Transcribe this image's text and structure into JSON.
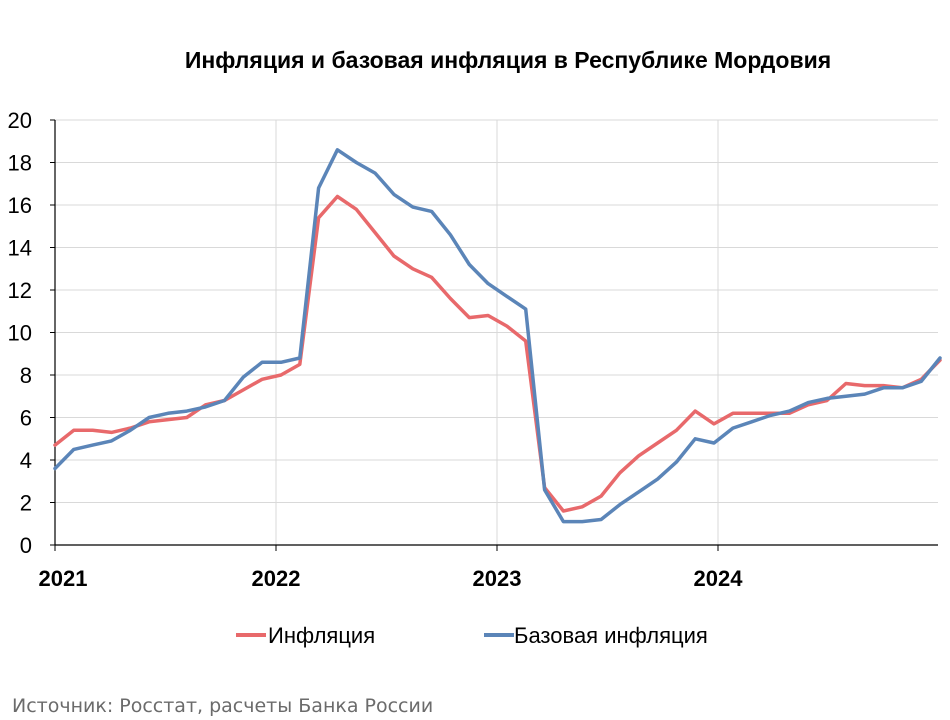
{
  "chart_data": {
    "type": "line",
    "title": "Инфляция и базовая инфляция в Республике Мордовия",
    "source": "Источник: Росстат, расчеты Банка России",
    "ylim": [
      0,
      20
    ],
    "yticks": [
      0,
      2,
      4,
      6,
      8,
      10,
      12,
      14,
      16,
      18,
      20
    ],
    "xticks": [
      "2021",
      "2022",
      "2023",
      "2024"
    ],
    "grid": true,
    "legend_position": "bottom",
    "x": [
      "2021-01",
      "2021-02",
      "2021-03",
      "2021-04",
      "2021-05",
      "2021-06",
      "2021-07",
      "2021-08",
      "2021-09",
      "2021-10",
      "2021-11",
      "2021-12",
      "2022-01",
      "2022-02",
      "2022-03",
      "2022-04",
      "2022-05",
      "2022-06",
      "2022-07",
      "2022-08",
      "2022-09",
      "2022-10",
      "2022-11",
      "2022-12",
      "2023-01",
      "2023-02",
      "2023-03",
      "2023-04",
      "2023-05",
      "2023-06",
      "2023-07",
      "2023-08",
      "2023-09",
      "2023-10",
      "2023-11",
      "2023-12",
      "2024-01",
      "2024-02",
      "2024-03",
      "2024-04",
      "2024-05",
      "2024-06",
      "2024-07",
      "2024-08",
      "2024-09",
      "2024-10",
      "2024-11",
      "2024-12"
    ],
    "series": [
      {
        "name": "Инфляция",
        "color": "#e8696b",
        "values": [
          4.7,
          5.4,
          5.4,
          5.3,
          5.5,
          5.8,
          5.9,
          6.0,
          6.6,
          6.8,
          7.3,
          7.8,
          8.0,
          8.5,
          15.4,
          16.4,
          15.8,
          14.7,
          13.6,
          13.0,
          12.6,
          11.6,
          10.7,
          10.8,
          10.3,
          9.6,
          2.7,
          1.6,
          1.8,
          2.3,
          3.4,
          4.2,
          4.8,
          5.4,
          6.3,
          5.7,
          6.2,
          6.2,
          6.2,
          6.2,
          6.6,
          6.8,
          7.6,
          7.5,
          7.5,
          7.4,
          7.8,
          8.7
        ]
      },
      {
        "name": "Базовая инфляция",
        "color": "#5b85b8",
        "values": [
          3.6,
          4.5,
          4.7,
          4.9,
          5.4,
          6.0,
          6.2,
          6.3,
          6.5,
          6.8,
          7.9,
          8.6,
          8.6,
          8.8,
          16.8,
          18.6,
          18.0,
          17.5,
          16.5,
          15.9,
          15.7,
          14.6,
          13.2,
          12.3,
          11.7,
          11.1,
          2.6,
          1.1,
          1.1,
          1.2,
          1.9,
          2.5,
          3.1,
          3.9,
          5.0,
          4.8,
          5.5,
          5.8,
          6.1,
          6.3,
          6.7,
          6.9,
          7.0,
          7.1,
          7.4,
          7.4,
          7.7,
          8.8
        ]
      }
    ]
  }
}
